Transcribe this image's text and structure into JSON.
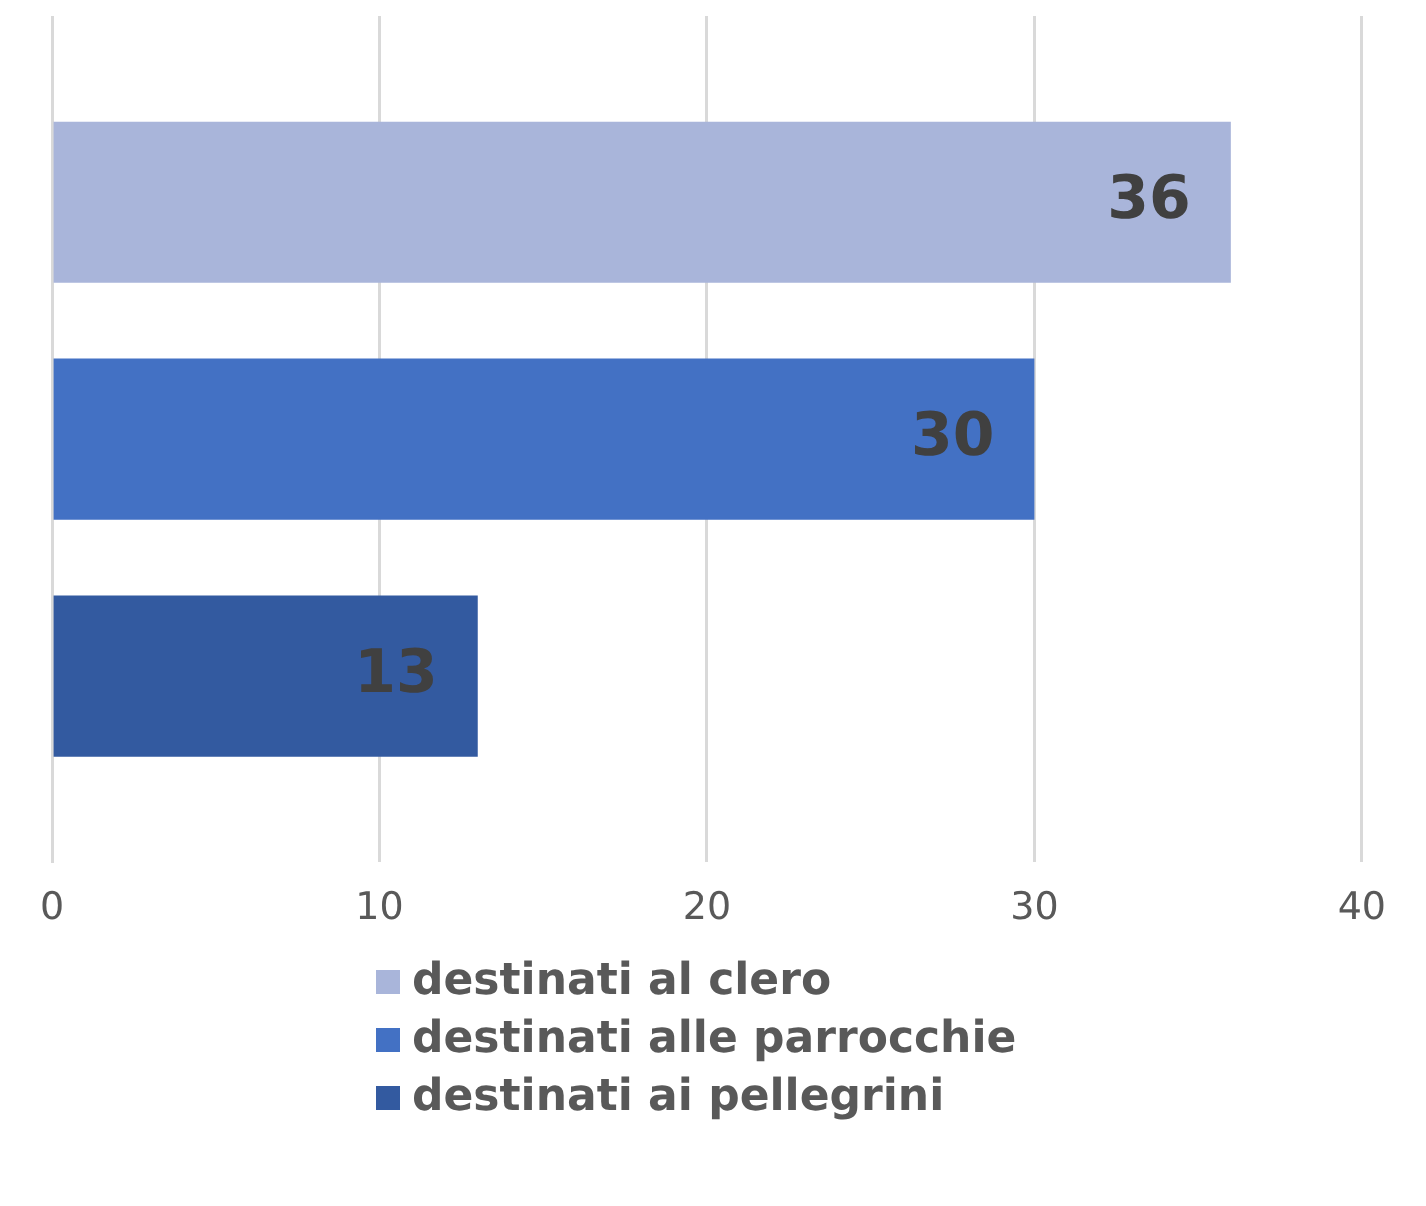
{
  "chart_data": {
    "type": "bar",
    "orientation": "horizontal",
    "categories": [
      null
    ],
    "series": [
      {
        "name": "destinati al clero",
        "color": "#a9b5da",
        "values": [
          36
        ]
      },
      {
        "name": "destinati alle parrocchie",
        "color": "#4371c4",
        "values": [
          30
        ]
      },
      {
        "name": "destinati ai pellegrini",
        "color": "#335aa0",
        "values": [
          13
        ]
      }
    ],
    "xlim": [
      0,
      40
    ],
    "xticks": [
      0,
      10,
      20,
      30,
      40
    ],
    "grid": "x",
    "data_labels": true,
    "legend": "bottom"
  }
}
